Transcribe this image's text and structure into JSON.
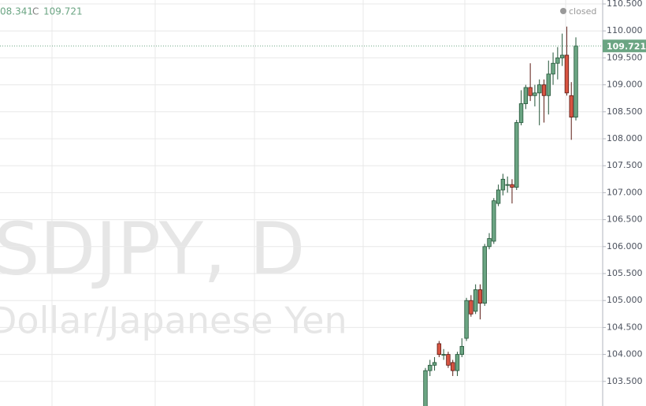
{
  "chart_data": {
    "type": "candlestick",
    "watermark": "SDJPY, D",
    "watermark_subtitle": "Dollar/Japanese Yen",
    "header": {
      "low_partial": "08.341",
      "close_label": "C",
      "close": "109.721"
    },
    "status": "closed",
    "last_price": {
      "value": 109.721,
      "label": "109.721"
    },
    "up_color": "#6ba583",
    "down_color": "#d75442",
    "grid": true,
    "ylim": [
      103.044,
      110.573
    ],
    "yticks": [
      {
        "value": 110.5,
        "label": "110.500"
      },
      {
        "value": 110.0,
        "label": "110.000"
      },
      {
        "value": 109.5,
        "label": "109.500"
      },
      {
        "value": 109.0,
        "label": "109.000"
      },
      {
        "value": 108.5,
        "label": "108.500"
      },
      {
        "value": 108.0,
        "label": "108.000"
      },
      {
        "value": 107.5,
        "label": "107.500"
      },
      {
        "value": 107.0,
        "label": "107.000"
      },
      {
        "value": 106.5,
        "label": "106.500"
      },
      {
        "value": 106.0,
        "label": "106.000"
      },
      {
        "value": 105.5,
        "label": "105.500"
      },
      {
        "value": 105.0,
        "label": "105.000"
      },
      {
        "value": 104.5,
        "label": "104.500"
      },
      {
        "value": 104.0,
        "label": "104.000"
      },
      {
        "value": 103.5,
        "label": "103.500"
      }
    ],
    "categories": [
      null,
      null,
      null,
      null,
      null,
      null,
      null,
      null,
      null,
      null,
      null,
      null,
      null,
      null,
      null,
      null,
      null,
      null,
      null,
      null,
      null,
      null,
      null,
      null,
      null,
      null,
      null,
      null,
      null,
      null,
      null,
      null,
      null,
      null
    ],
    "open": [
      103.0,
      103.7,
      103.8,
      104.2,
      104.0,
      104.0,
      103.85,
      103.7,
      104.0,
      104.3,
      105.0,
      104.8,
      105.2,
      104.95,
      106.0,
      106.1,
      106.8,
      107.05,
      107.15,
      107.15,
      107.1,
      108.3,
      108.65,
      108.95,
      108.8,
      108.85,
      109.0,
      108.8,
      109.2,
      109.4,
      109.5,
      109.55,
      108.8,
      108.4
    ],
    "high": [
      103.75,
      103.9,
      103.95,
      104.25,
      104.1,
      104.05,
      103.9,
      104.05,
      104.3,
      105.05,
      105.1,
      105.3,
      105.3,
      106.05,
      106.25,
      106.9,
      107.15,
      107.35,
      107.3,
      107.25,
      108.35,
      108.9,
      109.0,
      109.4,
      109.0,
      109.1,
      109.1,
      109.45,
      109.6,
      109.7,
      109.95,
      110.08,
      109.05,
      109.88
    ],
    "low": [
      103.0,
      103.6,
      103.7,
      103.95,
      103.9,
      103.75,
      103.6,
      103.6,
      103.95,
      104.25,
      104.7,
      104.75,
      104.65,
      104.9,
      105.95,
      106.05,
      106.75,
      106.95,
      107.0,
      106.8,
      107.05,
      108.25,
      108.55,
      108.7,
      108.6,
      108.25,
      108.3,
      108.45,
      109.0,
      109.1,
      109.35,
      108.8,
      107.98,
      108.34
    ],
    "close": [
      103.7,
      103.8,
      103.85,
      104.0,
      104.0,
      103.8,
      103.7,
      104.0,
      104.15,
      105.0,
      104.75,
      105.2,
      104.95,
      106.0,
      106.15,
      106.85,
      107.05,
      107.25,
      107.15,
      107.1,
      108.3,
      108.65,
      108.95,
      108.8,
      108.85,
      109.0,
      108.8,
      109.2,
      109.4,
      109.5,
      109.55,
      108.85,
      108.4,
      109.721
    ]
  }
}
